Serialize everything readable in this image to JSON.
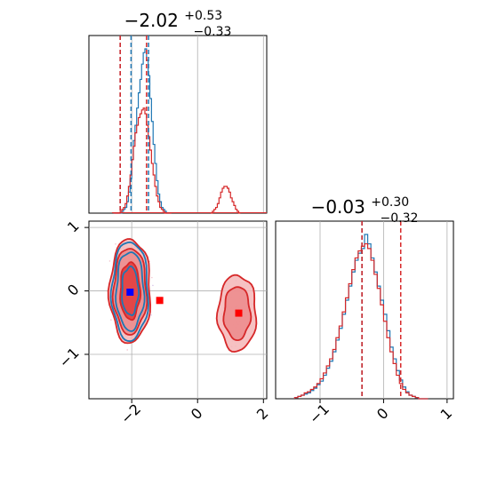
{
  "colors": {
    "blue": "#1f77b4",
    "red": "#d62728",
    "grid": "#b0b0b0",
    "axis": "#000000",
    "red_fill_light": "#f4b6b7",
    "red_fill_mid": "#ec8a8b",
    "red_fill_dark": "#e0393a",
    "blue_marker": "#0000ff",
    "red_marker": "#ff0000"
  },
  "panels": {
    "top_left": {
      "title": {
        "main": "−2.02",
        "sup": "+0.53",
        "sub": "−0.33"
      }
    },
    "bottom_right": {
      "title": {
        "main": "−0.03",
        "sup": "+0.30",
        "sub": "−0.32"
      }
    }
  },
  "axis_ticks": {
    "x_param1": [
      "−2",
      "0",
      "2"
    ],
    "y_param2": [
      "1",
      "0",
      "−1"
    ],
    "x_param2": [
      "−1",
      "0",
      "1"
    ]
  },
  "chart_data": [
    {
      "type": "histogram",
      "panel": "top_left",
      "parameter_range": [
        -3.3,
        2.1
      ],
      "bins_start": -2.55,
      "bin_width": 0.05,
      "series": [
        {
          "color": "blue",
          "counts": [
            0,
            0,
            0,
            0,
            0,
            1,
            2,
            3,
            6,
            11,
            18,
            28,
            38,
            46,
            55,
            63,
            70,
            78,
            84,
            86,
            80,
            72,
            60,
            48,
            36,
            26,
            17,
            10,
            6,
            3,
            2,
            1,
            0,
            0,
            0
          ]
        },
        {
          "color": "red",
          "counts": [
            0,
            0,
            0,
            0,
            1,
            2,
            3,
            5,
            9,
            14,
            20,
            28,
            35,
            42,
            46,
            50,
            52,
            54,
            55,
            52,
            46,
            40,
            33,
            26,
            20,
            14,
            9,
            6,
            3,
            2,
            1,
            0,
            0,
            0,
            0
          ]
        }
      ],
      "red_second_mode": {
        "bins_start": 0.4,
        "bin_width": 0.05,
        "counts": [
          0,
          1,
          2,
          3,
          5,
          8,
          11,
          13,
          14,
          14,
          13,
          11,
          8,
          6,
          4,
          2,
          1,
          0
        ]
      },
      "quantile_lines": {
        "blue": [
          -2.35,
          -2.02,
          -1.49
        ],
        "red": [
          -2.35,
          -1.55
        ]
      },
      "grid_x": [
        -2,
        0,
        2
      ]
    },
    {
      "type": "contour",
      "panel": "bottom_left",
      "x_range": [
        -3.3,
        2.1
      ],
      "y_range": [
        -1.7,
        1.1
      ],
      "grid_x": [
        -2,
        0,
        2
      ],
      "grid_y": [
        1,
        0,
        -1
      ],
      "blobs": [
        {
          "color": "red",
          "cx": -2.05,
          "cy": 0.0,
          "rx": [
            0.62,
            0.5,
            0.3
          ],
          "ry": [
            0.82,
            0.68,
            0.45
          ]
        },
        {
          "color": "blue",
          "cx": -2.05,
          "cy": 0.0,
          "rx": [
            0.55,
            0.42,
            0.25
          ],
          "ry": [
            0.78,
            0.62,
            0.38
          ]
        },
        {
          "color": "red",
          "cx": 1.2,
          "cy": -0.35,
          "rx": [
            0.58,
            0.4
          ],
          "ry": [
            0.6,
            0.42
          ]
        }
      ],
      "markers": [
        {
          "color": "blue",
          "x": -2.05,
          "y": -0.02
        },
        {
          "color": "red",
          "x": -1.15,
          "y": -0.15
        },
        {
          "color": "red",
          "x": 1.25,
          "y": -0.35
        }
      ]
    },
    {
      "type": "histogram",
      "panel": "bottom_right",
      "parameter_range": [
        -1.7,
        1.1
      ],
      "bins_start": -1.4,
      "bin_width": 0.05,
      "series": [
        {
          "color": "blue",
          "counts": [
            1,
            2,
            3,
            4,
            5,
            7,
            9,
            12,
            15,
            20,
            26,
            32,
            40,
            50,
            60,
            72,
            84,
            96,
            108,
            118,
            124,
            128,
            140,
            132,
            120,
            108,
            96,
            84,
            72,
            58,
            44,
            34,
            24,
            16,
            10,
            6,
            3,
            2,
            1,
            0,
            0,
            0
          ]
        },
        {
          "color": "red",
          "counts": [
            1,
            2,
            3,
            5,
            6,
            8,
            10,
            13,
            17,
            22,
            28,
            34,
            42,
            52,
            62,
            74,
            86,
            98,
            110,
            120,
            126,
            130,
            132,
            128,
            118,
            106,
            94,
            80,
            66,
            52,
            40,
            30,
            20,
            13,
            8,
            5,
            3,
            2,
            1,
            0,
            0,
            0
          ]
        }
      ],
      "quantile_lines": {
        "blue": [
          -0.34
        ],
        "red": [
          -0.34,
          0.27
        ]
      },
      "grid_x": [
        -1,
        0,
        1
      ]
    }
  ]
}
